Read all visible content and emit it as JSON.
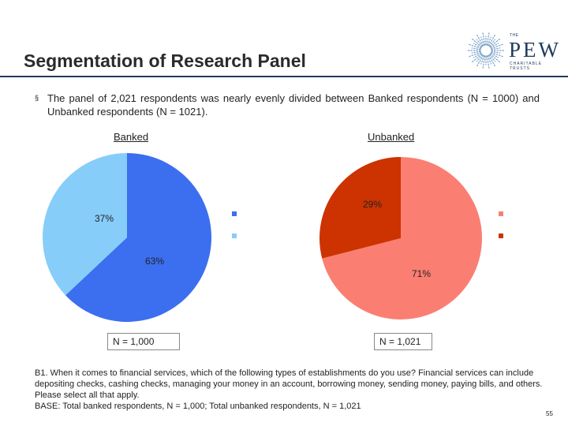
{
  "header": {
    "title": "Segmentation of Research Panel",
    "logo": {
      "small": "THE",
      "main": "PEW",
      "sub": "CHARITABLE TRUSTS"
    }
  },
  "bullet": {
    "mark": "§",
    "text": "The panel of 2,021 respondents was nearly evenly divided between Banked respondents (N = 1000) and Unbanked respondents (N = 1021)."
  },
  "colors": {
    "banked_primary": "#3b6ff0",
    "banked_secondary": "#87cdf9",
    "unbanked_primary": "#fa7f72",
    "unbanked_secondary": "#cc3300",
    "rule": "#1f3a5f"
  },
  "chart_data": [
    {
      "type": "pie",
      "title": "Banked",
      "slices": [
        {
          "label": "63%",
          "value": 63,
          "color": "#3b6ff0"
        },
        {
          "label": "37%",
          "value": 37,
          "color": "#87cdf9"
        }
      ],
      "n_label": "N = 1,000"
    },
    {
      "type": "pie",
      "title": "Unbanked",
      "slices": [
        {
          "label": "71%",
          "value": 71,
          "color": "#fa7f72"
        },
        {
          "label": "29%",
          "value": 29,
          "color": "#cc3300"
        }
      ],
      "n_label": "N = 1,021"
    }
  ],
  "footnote": {
    "question": "B1.  When it comes to financial services, which of the following types of establishments do you use?  Financial services can include depositing checks, cashing checks, managing your money in an account, borrowing money, sending money, paying bills, and others.  Please select all that apply.",
    "base": "BASE:  Total banked respondents, N = 1,000; Total unbanked respondents, N = 1,021"
  },
  "page_number": "55"
}
